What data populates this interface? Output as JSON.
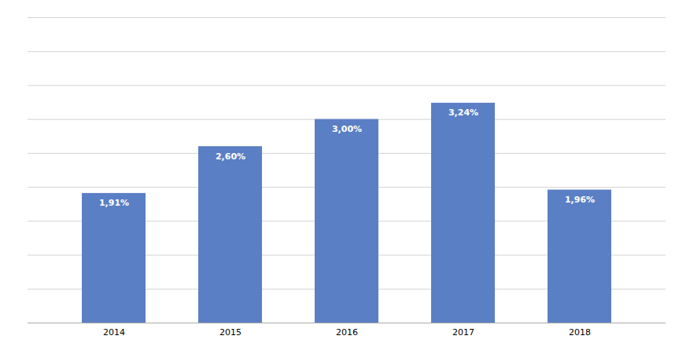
{
  "chart_data": {
    "type": "bar",
    "categories": [
      "2014",
      "2015",
      "2016",
      "2017",
      "2018"
    ],
    "values": [
      1.91,
      2.6,
      3.0,
      3.24,
      1.96
    ],
    "value_labels": [
      "1,91%",
      "2,60%",
      "3,00%",
      "3,24%",
      "1,96%"
    ],
    "data_labels": true,
    "color": "#5b7fc4",
    "ylim": [
      0,
      4.5
    ],
    "yticks": [
      0.5,
      1.0,
      1.5,
      2.0,
      2.5,
      3.0,
      3.5,
      4.0,
      4.5
    ],
    "grid": true,
    "tick_labels": "x"
  }
}
